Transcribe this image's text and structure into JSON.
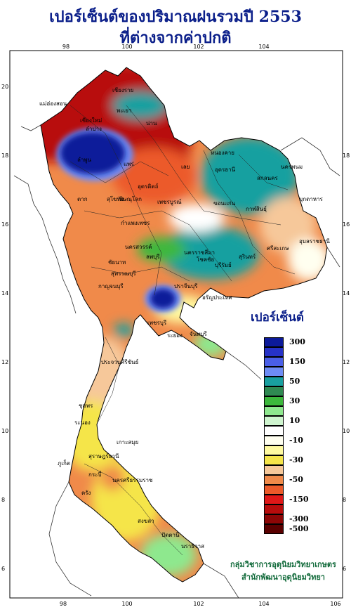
{
  "title": {
    "line1": "เปอร์เซ็นต์ของปริมาณฝนรวมปี  2553",
    "line2": "ที่ต่างจากค่าปกติ"
  },
  "axes": {
    "top_ticks": [
      "98",
      "100",
      "102",
      "104"
    ],
    "bottom_ticks": [
      "98",
      "100",
      "102",
      "104",
      "106"
    ],
    "left_ticks": [
      "20",
      "18",
      "16",
      "14",
      "12",
      "10",
      "8",
      "6"
    ],
    "right_ticks": [
      "18",
      "16",
      "14",
      "12",
      "10",
      "8",
      "6"
    ]
  },
  "places": [
    "เชียงราย",
    "แม่ฮ่องสอน",
    "เชียงใหม่",
    "ลำปาง",
    "พะเยา",
    "น่าน",
    "ลำพูน",
    "แพร่",
    "อุตรดิตถ์",
    "ตาก",
    "สุโขทัย",
    "เลย",
    "หนองคาย",
    "อุดรธานี",
    "นครพนม",
    "สกลนคร",
    "มุกดาหาร",
    "กาฬสินธุ์",
    "ขอนแก่น",
    "พิษณุโลก",
    "เพชรบูรณ์",
    "กำแพงเพชร",
    "นครสวรรค์",
    "ชัยนาท",
    "สุพรรณบุรี",
    "กาญจนบุรี",
    "ลพบุรี",
    "นครราชสีมา",
    "โชคชัย",
    "บุรีรัมย์",
    "สุรินทร์",
    "อุบลราชธานี",
    "ศรีสะเกษ",
    "ปราจีนบุรี",
    "อรัญประเทศ",
    "เพชรบุรี",
    "ระยอง",
    "จันทบุรี",
    "ประจวบคีรีขันธ์",
    "ชุมพร",
    "ระนอง",
    "สุราษฎร์ธานี",
    "เกาะสมุย",
    "ภูเก็ต",
    "กระบี่",
    "นครศรีธรรมราช",
    "ตรัง",
    "สงขลา",
    "ปัตตานี",
    "นราธิวาส"
  ],
  "legend": {
    "title": "เปอร์เซ็นต์",
    "bins": [
      {
        "color": "#0c1a9a",
        "label": "300"
      },
      {
        "color": "#2632c8",
        "label": ""
      },
      {
        "color": "#4a5fe8",
        "label": "150"
      },
      {
        "color": "#6e8cf5",
        "label": ""
      },
      {
        "color": "#19a0a0",
        "label": "50"
      },
      {
        "color": "#2f8a52",
        "label": ""
      },
      {
        "color": "#3cb83c",
        "label": "30"
      },
      {
        "color": "#8ee88e",
        "label": ""
      },
      {
        "color": "#cff5cf",
        "label": "10"
      },
      {
        "color": "#ffffff",
        "label": ""
      },
      {
        "color": "#fffff0",
        "label": "-10"
      },
      {
        "color": "#fffaa0",
        "label": ""
      },
      {
        "color": "#f5e54a",
        "label": "-30"
      },
      {
        "color": "#f6c89a",
        "label": ""
      },
      {
        "color": "#f08a4a",
        "label": "-50"
      },
      {
        "color": "#ec5a2a",
        "label": ""
      },
      {
        "color": "#e01818",
        "label": "-150"
      },
      {
        "color": "#b80c0c",
        "label": ""
      },
      {
        "color": "#8c0606",
        "label": "-300"
      },
      {
        "color": "#5a0000",
        "label": "-500"
      }
    ]
  },
  "credit": {
    "line1": "กลุ่มวิชาการอุตุนิยมวิทยาเกษตร",
    "line2": "สำนักพัฒนาอุตุนิยมวิทยา"
  },
  "colors": {
    "title": "#0b1f8a",
    "credit": "#116a3a"
  }
}
